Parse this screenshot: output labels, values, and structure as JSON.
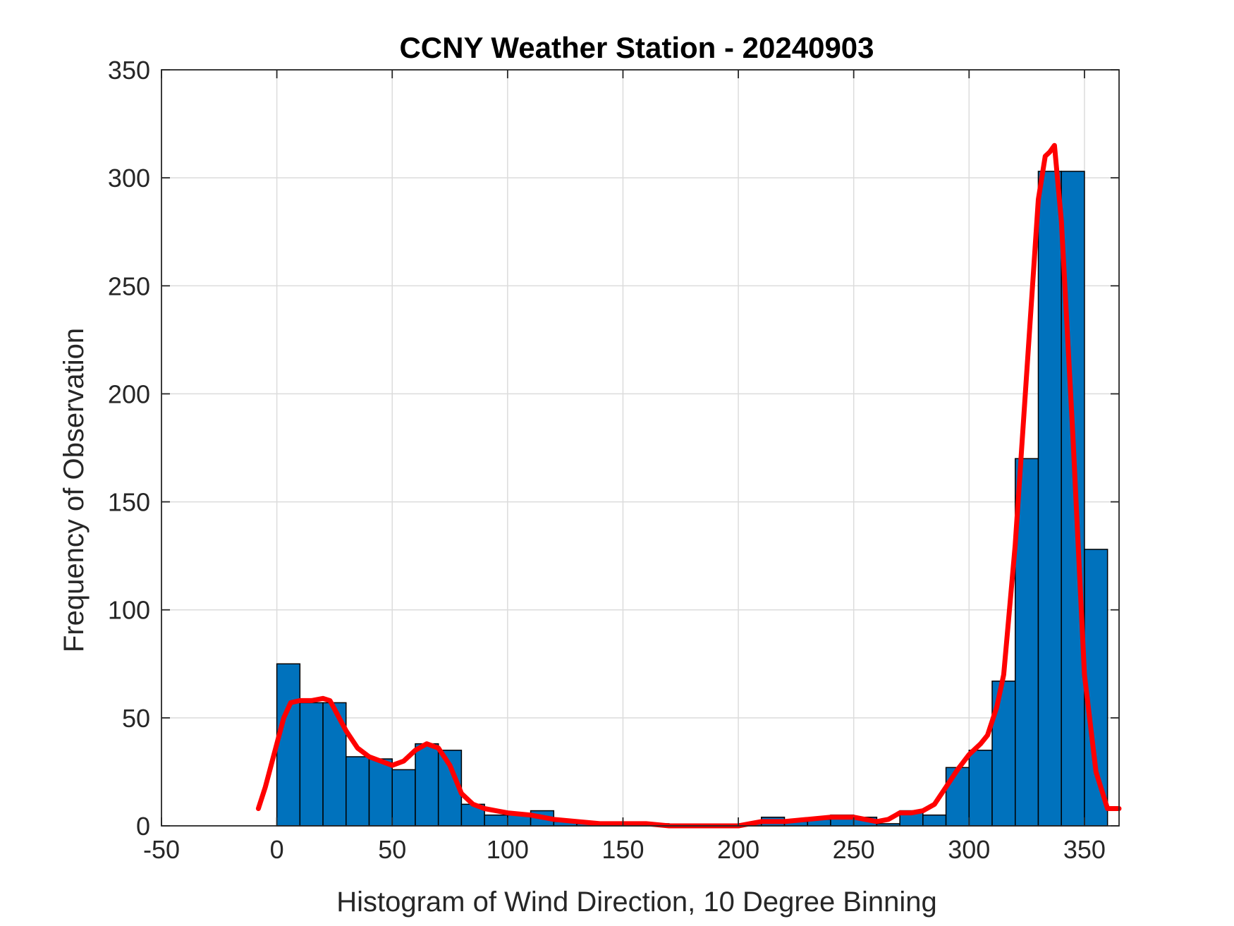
{
  "chart_data": {
    "type": "bar",
    "title": "CCNY Weather Station - 20240903",
    "xlabel": "Histogram of Wind Direction, 10 Degree Binning",
    "ylabel": "Frequency of Observation",
    "xlim": [
      -50,
      365
    ],
    "ylim": [
      0,
      350
    ],
    "xticks": [
      -50,
      0,
      50,
      100,
      150,
      200,
      250,
      300,
      350
    ],
    "yticks": [
      0,
      50,
      100,
      150,
      200,
      250,
      300,
      350
    ],
    "grid": true,
    "bin_width": 10,
    "bins": [
      {
        "start": 0,
        "value": 75
      },
      {
        "start": 10,
        "value": 57
      },
      {
        "start": 20,
        "value": 57
      },
      {
        "start": 30,
        "value": 32
      },
      {
        "start": 40,
        "value": 31
      },
      {
        "start": 50,
        "value": 26
      },
      {
        "start": 60,
        "value": 38
      },
      {
        "start": 70,
        "value": 35
      },
      {
        "start": 80,
        "value": 10
      },
      {
        "start": 90,
        "value": 5
      },
      {
        "start": 100,
        "value": 5
      },
      {
        "start": 110,
        "value": 7
      },
      {
        "start": 120,
        "value": 2
      },
      {
        "start": 130,
        "value": 1
      },
      {
        "start": 140,
        "value": 1
      },
      {
        "start": 150,
        "value": 1
      },
      {
        "start": 160,
        "value": 1
      },
      {
        "start": 170,
        "value": 0
      },
      {
        "start": 180,
        "value": 0
      },
      {
        "start": 190,
        "value": 0
      },
      {
        "start": 200,
        "value": 1
      },
      {
        "start": 210,
        "value": 4
      },
      {
        "start": 220,
        "value": 2
      },
      {
        "start": 230,
        "value": 3
      },
      {
        "start": 240,
        "value": 5
      },
      {
        "start": 250,
        "value": 4
      },
      {
        "start": 260,
        "value": 1
      },
      {
        "start": 270,
        "value": 7
      },
      {
        "start": 280,
        "value": 5
      },
      {
        "start": 290,
        "value": 27
      },
      {
        "start": 300,
        "value": 35
      },
      {
        "start": 310,
        "value": 67
      },
      {
        "start": 320,
        "value": 170
      },
      {
        "start": 330,
        "value": 303
      },
      {
        "start": 340,
        "value": 303
      },
      {
        "start": 350,
        "value": 128
      }
    ],
    "fit_curve": {
      "x": [
        -8,
        -5,
        0,
        3,
        6,
        10,
        15,
        20,
        23,
        26,
        30,
        35,
        40,
        45,
        50,
        55,
        60,
        65,
        70,
        75,
        80,
        85,
        90,
        95,
        100,
        110,
        120,
        130,
        140,
        150,
        160,
        170,
        180,
        190,
        200,
        210,
        220,
        230,
        240,
        250,
        260,
        265,
        270,
        275,
        280,
        285,
        290,
        295,
        300,
        305,
        308,
        312,
        315,
        320,
        325,
        330,
        333,
        335,
        337,
        340,
        345,
        350,
        355,
        360,
        365
      ],
      "y": [
        8,
        18,
        38,
        50,
        57,
        58,
        58,
        59,
        58,
        52,
        44,
        36,
        32,
        30,
        28,
        30,
        35,
        38,
        36,
        28,
        15,
        10,
        8,
        7,
        6,
        5,
        3,
        2,
        1,
        1,
        1,
        0,
        0,
        0,
        0,
        2,
        2,
        3,
        4,
        4,
        2,
        3,
        6,
        6,
        7,
        10,
        18,
        26,
        33,
        38,
        42,
        55,
        70,
        130,
        210,
        290,
        310,
        312,
        315,
        280,
        180,
        70,
        25,
        8,
        8
      ],
      "color": "#ff0000"
    },
    "bar_color": "#0072bd"
  }
}
